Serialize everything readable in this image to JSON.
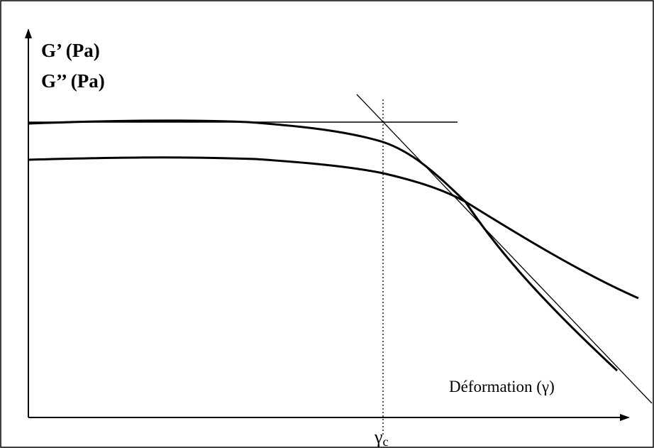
{
  "labels": {
    "y_axis_line1": "G’ (Pa)",
    "y_axis_line2": "G’’ (Pa)",
    "x_axis": "Déformation (γ)",
    "critical_symbol": "γ",
    "critical_subscript": "c"
  },
  "colors": {
    "ink": "#000000",
    "background": "#ffffff"
  }
}
